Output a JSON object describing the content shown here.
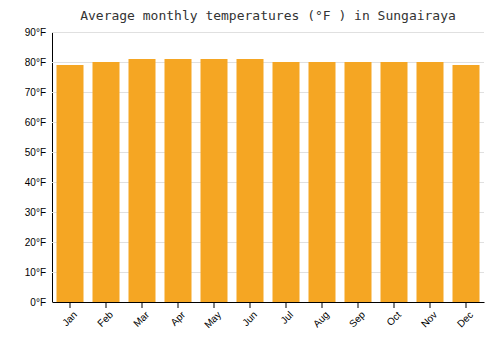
{
  "chart_data": {
    "type": "bar",
    "title": "Average monthly temperatures (°F ) in Sungairaya",
    "categories": [
      "Jan",
      "Feb",
      "Mar",
      "Apr",
      "May",
      "Jun",
      "Jul",
      "Aug",
      "Sep",
      "Oct",
      "Nov",
      "Dec"
    ],
    "values": [
      79,
      80,
      81,
      81,
      81,
      81,
      80,
      80,
      80,
      80,
      80,
      79
    ],
    "color": "#F5A623",
    "ylim": [
      0,
      90
    ],
    "yticks": [
      {
        "value": 0,
        "label": "0°F"
      },
      {
        "value": 10,
        "label": "10°F"
      },
      {
        "value": 20,
        "label": "20°F"
      },
      {
        "value": 30,
        "label": "30°F"
      },
      {
        "value": 40,
        "label": "40°F"
      },
      {
        "value": 50,
        "label": "50°F"
      },
      {
        "value": 60,
        "label": "60°F"
      },
      {
        "value": 70,
        "label": "70°F"
      },
      {
        "value": 80,
        "label": "80°F"
      },
      {
        "value": 90,
        "label": "90°F"
      }
    ],
    "grid": true
  }
}
